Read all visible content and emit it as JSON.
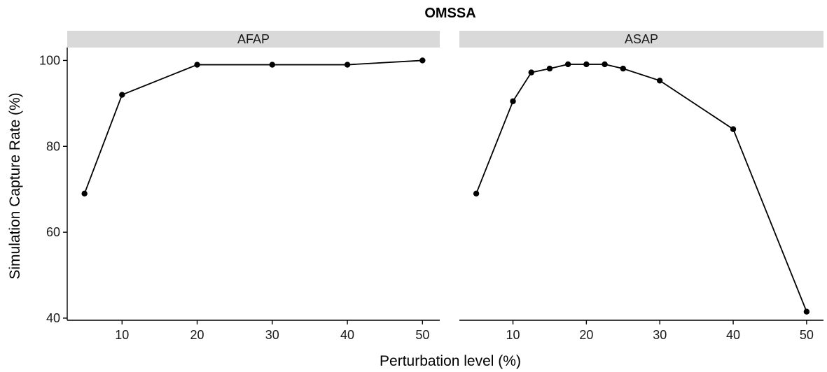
{
  "chart_data": {
    "type": "line",
    "title": "OMSSA",
    "xlabel": "Perturbation level (%)",
    "ylabel": "Simulation Capture Rate (%)",
    "xlim": [
      2.7,
      52.3
    ],
    "ylim": [
      39.5,
      103
    ],
    "x_ticks": [
      10,
      20,
      30,
      40,
      50
    ],
    "y_ticks": [
      40,
      60,
      80,
      100
    ],
    "grid": false,
    "legend": "none",
    "facets": [
      {
        "label": "AFAP",
        "series": [
          {
            "x": [
              5,
              10,
              20,
              30,
              40,
              50
            ],
            "y": [
              69,
              92,
              99,
              99,
              99,
              100
            ]
          }
        ]
      },
      {
        "label": "ASAP",
        "series": [
          {
            "x": [
              5,
              10,
              12.5,
              15,
              17.5,
              20,
              22.5,
              25,
              30,
              40,
              50
            ],
            "y": [
              69,
              90.5,
              97.2,
              98.1,
              99.1,
              99.1,
              99.1,
              98.1,
              95.3,
              84,
              41.5
            ]
          }
        ]
      }
    ]
  }
}
